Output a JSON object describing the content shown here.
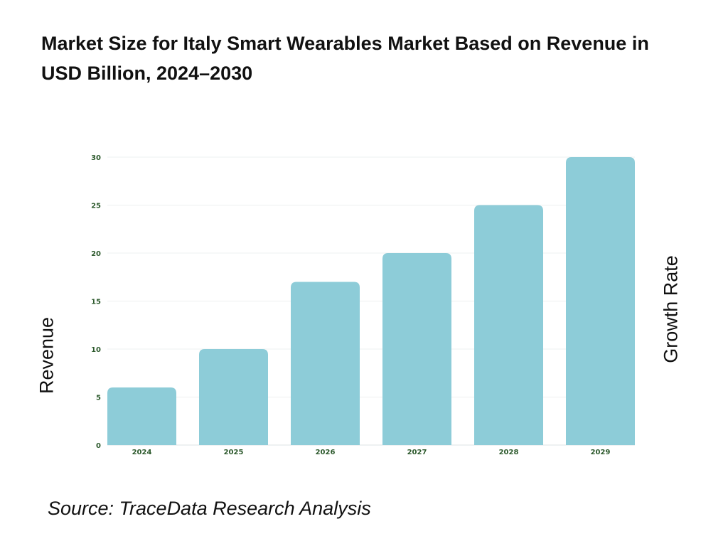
{
  "chart_data": {
    "type": "bar",
    "title": "Market Size for Italy Smart Wearables Market Based on Revenue in USD Billion, 2024–2030",
    "categories": [
      "2024",
      "2025",
      "2026",
      "2027",
      "2028",
      "2029"
    ],
    "values": [
      6,
      10,
      17,
      20,
      25,
      30
    ],
    "ylabel": "Revenue",
    "y2label": "Growth Rate",
    "ylim": [
      0,
      30
    ],
    "yticks": [
      0,
      5,
      10,
      15,
      20,
      25,
      30
    ],
    "grid": true,
    "bar_color": "#8dccd8",
    "tick_color": "#2d5a2d"
  },
  "source": "Source: TraceData Research Analysis"
}
